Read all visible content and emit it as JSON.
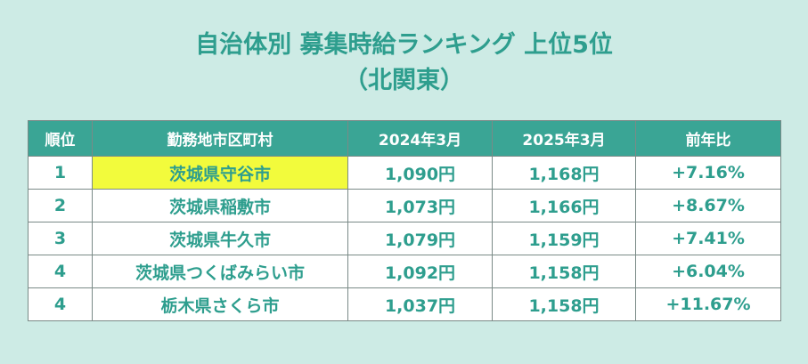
{
  "title": {
    "main": "自治体別 募集時給ランキング 上位5位",
    "sub": "（北関東）"
  },
  "table": {
    "headers": {
      "rank": "順位",
      "city": "勤務地市区町村",
      "y2024": "2024年3月",
      "y2025": "2025年3月",
      "yoy": "前年比"
    },
    "rows": [
      {
        "rank": "1",
        "city": "茨城県守谷市",
        "y2024": "1,090円",
        "y2025": "1,168円",
        "yoy": "+7.16%",
        "highlight": true
      },
      {
        "rank": "2",
        "city": "茨城県稲敷市",
        "y2024": "1,073円",
        "y2025": "1,166円",
        "yoy": "+8.67%"
      },
      {
        "rank": "3",
        "city": "茨城県牛久市",
        "y2024": "1,079円",
        "y2025": "1,159円",
        "yoy": "+7.41%"
      },
      {
        "rank": "4",
        "city": "茨城県つくばみらい市",
        "y2024": "1,092円",
        "y2025": "1,158円",
        "yoy": "+6.04%"
      },
      {
        "rank": "4",
        "city": "栃木県さくら市",
        "y2024": "1,037円",
        "y2025": "1,158円",
        "yoy": "+11.67%"
      }
    ]
  },
  "colors": {
    "background": "#cdebe5",
    "accent": "#2e9e8e",
    "header_bg": "#3aa595",
    "highlight": "#f2fb3c"
  }
}
